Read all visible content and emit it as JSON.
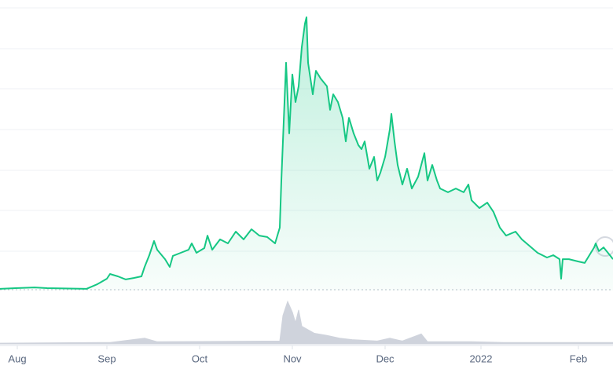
{
  "chart_data": {
    "type": "line",
    "xlim": [
      0,
      195
    ],
    "xticks": [
      {
        "value": 5.5,
        "label": "Aug"
      },
      {
        "value": 34,
        "label": "Sep"
      },
      {
        "value": 63.5,
        "label": "Oct"
      },
      {
        "value": 93,
        "label": "Nov"
      },
      {
        "value": 122.5,
        "label": "Dec"
      },
      {
        "value": 153,
        "label": "2022"
      },
      {
        "value": 184,
        "label": "Feb"
      }
    ],
    "ylim": [
      0,
      120
    ],
    "y2lim": [
      0,
      70
    ],
    "series": [
      {
        "color": "#16c784",
        "x": [
          0,
          5,
          11,
          15,
          27.5,
          31,
          34,
          35,
          37.5,
          40,
          42.5,
          45,
          46,
          47.5,
          49,
          50,
          52.5,
          54,
          55,
          57.5,
          60,
          61,
          62.5,
          65,
          66,
          67.5,
          70,
          72.5,
          75,
          77.5,
          80,
          82.5,
          85,
          87.5,
          89,
          89.5,
          90.5,
          91,
          92,
          93,
          94,
          95,
          96,
          97,
          97.5,
          98,
          99.5,
          100.5,
          102,
          104,
          105,
          106,
          107.5,
          109,
          110,
          111,
          112.5,
          114,
          115,
          116,
          117.5,
          119,
          120,
          121,
          122.5,
          124,
          124.5,
          125.5,
          126.5,
          128,
          129.5,
          131,
          133,
          135,
          136,
          137.5,
          139,
          140,
          142.5,
          145,
          147.5,
          149,
          150,
          152.5,
          155,
          157,
          159,
          161,
          164,
          166,
          169,
          171,
          174,
          176,
          178,
          178.5,
          179,
          181,
          184,
          186,
          187.5,
          189,
          189.5,
          190.5,
          192,
          194,
          195
        ],
        "values": [
          0.7,
          1,
          1.3,
          1,
          0.7,
          2.7,
          5,
          7,
          6,
          4.7,
          5.3,
          6,
          10,
          15,
          21,
          17.3,
          13.3,
          10,
          14.7,
          16,
          17.3,
          20,
          16,
          18,
          23.3,
          17.3,
          21.7,
          20,
          25,
          21.7,
          26,
          23.3,
          22.7,
          20,
          26.7,
          46.7,
          80,
          96.7,
          66.7,
          91.7,
          80,
          86.7,
          103.3,
          113.3,
          116,
          96.7,
          83.3,
          93.3,
          90,
          86.7,
          76.7,
          83.3,
          80,
          73.3,
          63.3,
          73.3,
          66.7,
          61.7,
          60,
          63.3,
          51.7,
          56.7,
          46.7,
          50,
          56.7,
          68.3,
          75,
          63.3,
          53.3,
          45,
          51.7,
          43.3,
          48.3,
          58.3,
          46.7,
          53.3,
          46.7,
          43.3,
          41.7,
          43.3,
          41.7,
          45,
          38.3,
          35,
          37.3,
          33.3,
          26.7,
          23.3,
          25,
          21.7,
          18.3,
          16,
          14,
          15,
          13.3,
          5,
          13.3,
          13.3,
          12.3,
          11.7,
          15,
          18.3,
          20,
          16.7,
          18.3,
          15,
          13.3
        ]
      },
      {
        "color": "#cfd3dc",
        "axis": "y2",
        "x": [
          0,
          35,
          46,
          50,
          89,
          90,
          91.5,
          93,
          94,
          95,
          96,
          98,
          100,
          104,
          108,
          112,
          116,
          120,
          124,
          128,
          134,
          136,
          150,
          160,
          180,
          195
        ],
        "values": [
          1,
          2,
          8,
          3,
          4,
          40,
          60,
          45,
          30,
          48,
          25,
          20,
          15,
          12,
          8,
          6,
          5,
          4,
          8,
          4,
          14,
          3,
          3,
          2,
          2,
          2
        ]
      }
    ]
  }
}
